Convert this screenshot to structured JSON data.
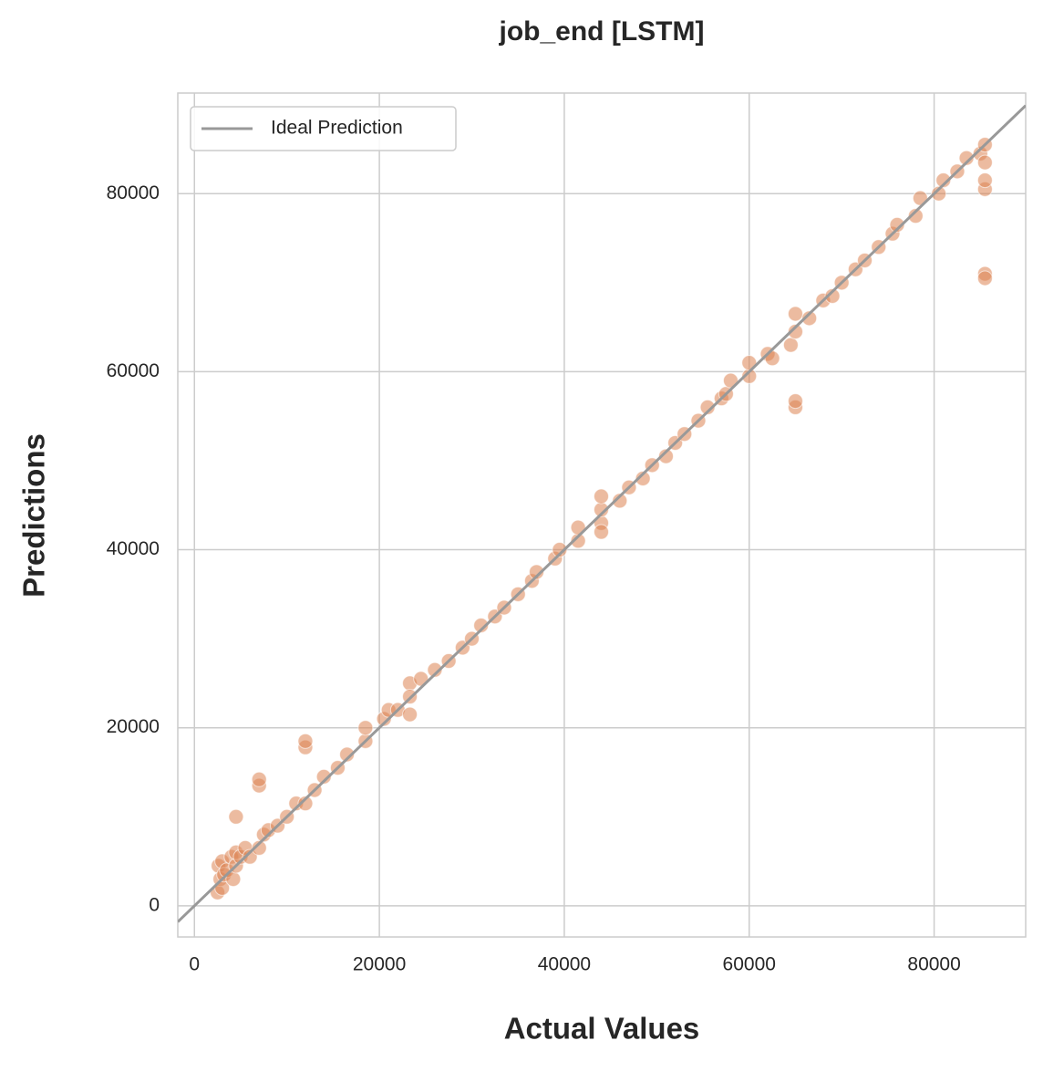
{
  "chart_data": {
    "type": "scatter",
    "title": "job_end [LSTM]",
    "x_label": "Actual Values",
    "y_label": "Predictions",
    "xlim": [
      -1800,
      89900
    ],
    "ylim": [
      -3500,
      91300
    ],
    "xticks": [
      0,
      20000,
      40000,
      60000,
      80000
    ],
    "yticks": [
      0,
      20000,
      40000,
      60000,
      80000
    ],
    "grid": true,
    "legend": "upper left",
    "points": {
      "color": "#dd8452",
      "x": [
        2500,
        2600,
        2800,
        3000,
        3000,
        3200,
        3500,
        4000,
        4200,
        4500,
        4500,
        4500,
        5000,
        5500,
        6000,
        7000,
        7000,
        7000,
        7500,
        8000,
        9000,
        10000,
        11000,
        12000,
        12000,
        12000,
        13000,
        14000,
        15500,
        16500,
        18500,
        18500,
        20500,
        21000,
        22000,
        23300,
        23300,
        23300,
        24500,
        26000,
        27500,
        29000,
        30000,
        31000,
        32500,
        33500,
        35000,
        36500,
        37000,
        39000,
        39500,
        41500,
        41500,
        44000,
        44000,
        44000,
        44000,
        46000,
        47000,
        48500,
        49500,
        51000,
        52000,
        53000,
        54500,
        55500,
        57000,
        57500,
        58000,
        60000,
        60000,
        62000,
        62500,
        64500,
        65000,
        65000,
        65000,
        65000,
        66500,
        68000,
        69000,
        70000,
        71500,
        72500,
        74000,
        75500,
        76000,
        78000,
        78500,
        80500,
        81000,
        82500,
        83500,
        85000,
        85500,
        85500,
        85500,
        85500,
        85500,
        85500
      ],
      "values": [
        1500,
        4500,
        3000,
        2000,
        5000,
        3500,
        4000,
        5500,
        3000,
        4500,
        10000,
        6000,
        5500,
        6500,
        5500,
        6500,
        13500,
        14200,
        8000,
        8500,
        9000,
        10000,
        11500,
        11500,
        17800,
        18500,
        13000,
        14500,
        15500,
        17000,
        18500,
        20000,
        21000,
        22000,
        22000,
        21500,
        25000,
        23500,
        25500,
        26500,
        27500,
        29000,
        30000,
        31500,
        32500,
        33500,
        35000,
        36500,
        37500,
        39000,
        40000,
        41000,
        42500,
        43000,
        44500,
        46000,
        42000,
        45500,
        47000,
        48000,
        49500,
        50500,
        52000,
        53000,
        54500,
        56000,
        57000,
        57500,
        59000,
        59500,
        61000,
        62000,
        61500,
        63000,
        64500,
        66500,
        56000,
        56700,
        66000,
        68000,
        68500,
        70000,
        71500,
        72500,
        74000,
        75500,
        76500,
        77500,
        79500,
        80000,
        81500,
        82500,
        84000,
        84500,
        85500,
        71000,
        70500,
        80500,
        81500,
        83500
      ]
    },
    "reference_line": {
      "name": "Ideal Prediction",
      "color": "#999999",
      "x": [
        -1800,
        89900
      ],
      "values": [
        -1800,
        89900
      ]
    }
  }
}
